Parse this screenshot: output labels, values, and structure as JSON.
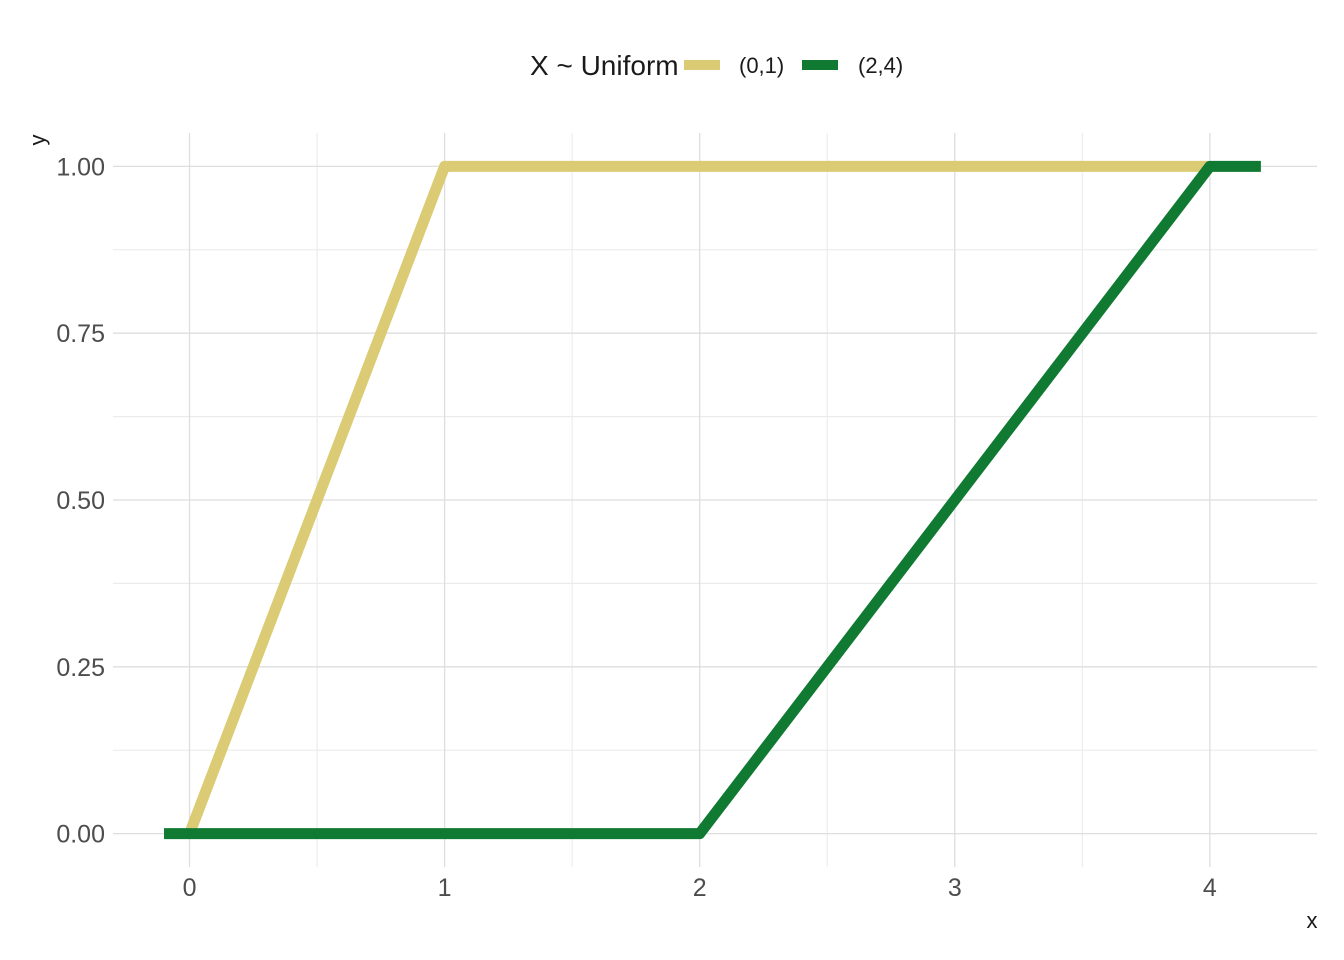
{
  "chart_data": {
    "type": "line",
    "xlabel": "x",
    "ylabel": "y",
    "xlim": [
      -0.3,
      4.42
    ],
    "ylim": [
      -0.05,
      1.05
    ],
    "x_ticks": [
      0,
      1,
      2,
      3,
      4
    ],
    "x_tick_labels": [
      "0",
      "1",
      "2",
      "3",
      "4"
    ],
    "y_ticks": [
      0,
      0.25,
      0.5,
      0.75,
      1
    ],
    "y_tick_labels": [
      "0.00",
      "0.25",
      "0.50",
      "0.75",
      "1.00"
    ],
    "grid": true,
    "legend": {
      "title": "X ~ Uniform",
      "position": "top"
    },
    "series": [
      {
        "name": "(0,1)",
        "color": "#DACB74",
        "points": [
          [
            0,
            0
          ],
          [
            1,
            1
          ],
          [
            4,
            1
          ]
        ]
      },
      {
        "name": "(2,4)",
        "color": "#107A33",
        "points": [
          [
            -0.1,
            0
          ],
          [
            2,
            0
          ],
          [
            4,
            1
          ],
          [
            4.2,
            1
          ]
        ]
      }
    ]
  }
}
